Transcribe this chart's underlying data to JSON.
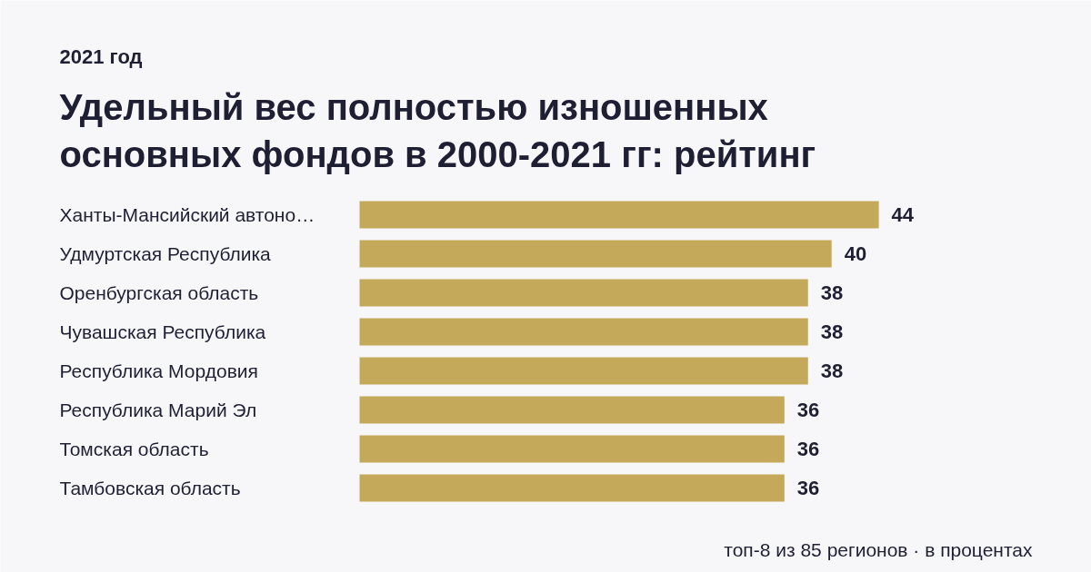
{
  "chart_data": {
    "type": "bar",
    "orientation": "horizontal",
    "title": "Удельный вес полностью изношенных основных фондов в 2000-2021 гг: рейтинг",
    "subtitle": "2021 год",
    "categories": [
      "Ханты-Мансийский автоно…",
      "Удмуртская Республика",
      "Оренбургская область",
      "Чувашская Республика",
      "Республика Мордовия",
      "Республика Марий Эл",
      "Томская область",
      "Тамбовская область"
    ],
    "values": [
      44,
      40,
      38,
      38,
      38,
      36,
      36,
      36
    ],
    "color": "#c4a95a",
    "data_labels": true,
    "annotations": [
      "топ-8 из 85 регионов · в процентах"
    ]
  }
}
